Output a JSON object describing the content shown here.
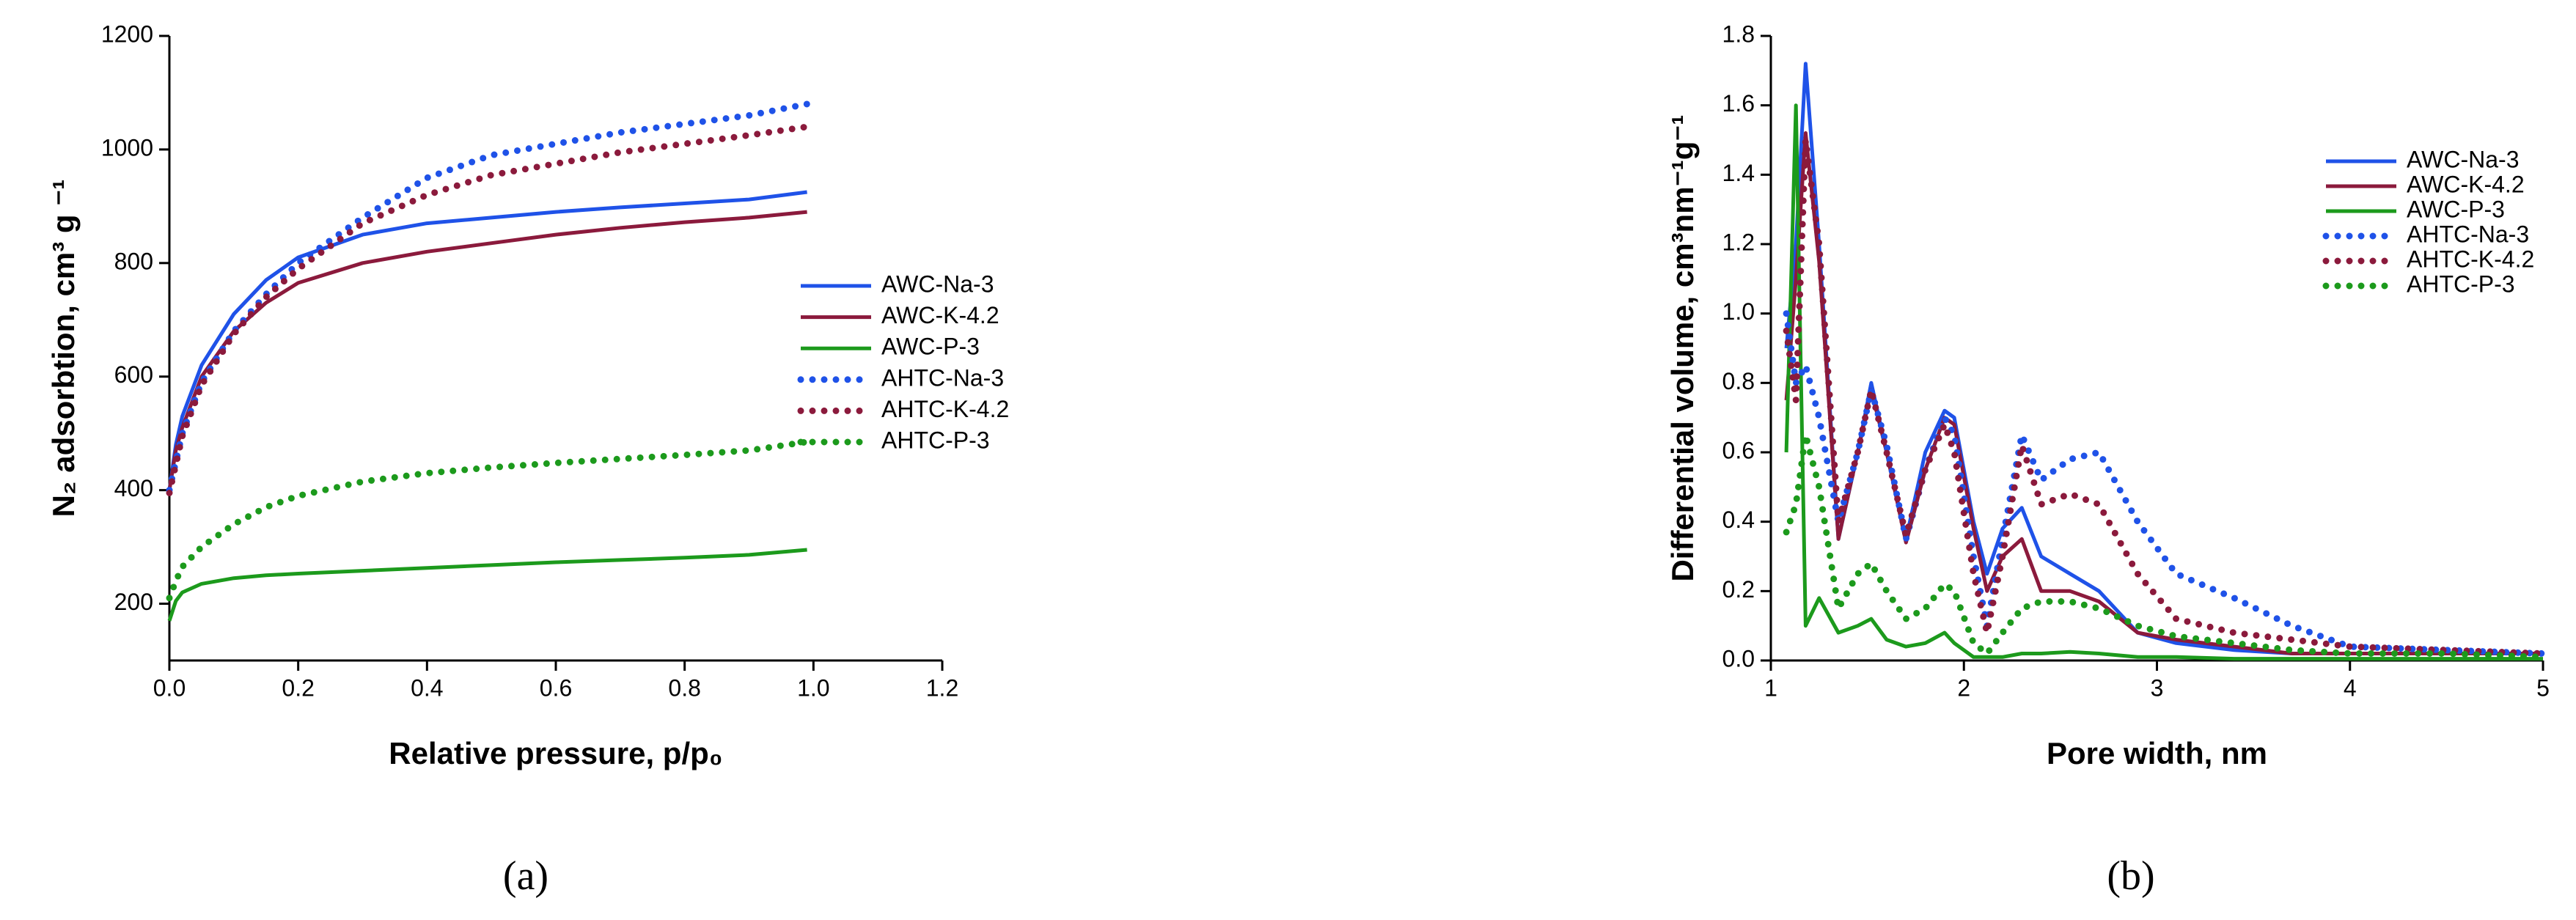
{
  "chart_data": [
    {
      "type": "line",
      "caption": "(a)",
      "x_label": "Relative pressure, p/p₀",
      "y_label": "N₂ adsorbtion, cm³ g ⁻¹",
      "xlim": [
        0,
        1.2
      ],
      "ylim": [
        100,
        1200
      ],
      "xticks": [
        {
          "value": 0,
          "label": "0.0"
        },
        0.2,
        0.4,
        0.6,
        0.8,
        {
          "value": 1,
          "label": "1.0"
        },
        1.2
      ],
      "yticks": [
        200,
        400,
        600,
        800,
        1000,
        1200
      ],
      "x": [
        0,
        0.01,
        0.02,
        0.05,
        0.1,
        0.15,
        0.2,
        0.3,
        0.4,
        0.5,
        0.6,
        0.7,
        0.8,
        0.9,
        0.99
      ],
      "series": [
        {
          "name": "AWC-Na-3",
          "color": "#1f52e8",
          "line_style": "solid",
          "values": [
            400,
            480,
            530,
            620,
            710,
            770,
            810,
            850,
            870,
            880,
            890,
            898,
            905,
            912,
            925
          ]
        },
        {
          "name": "AWC-K-4.2",
          "color": "#8b1a3c",
          "line_style": "solid",
          "values": [
            400,
            470,
            510,
            600,
            680,
            730,
            765,
            800,
            820,
            835,
            850,
            862,
            872,
            880,
            890
          ]
        },
        {
          "name": "AWC-P-3",
          "color": "#1c9a1c",
          "line_style": "solid",
          "values": [
            170,
            205,
            220,
            235,
            245,
            250,
            253,
            258,
            263,
            268,
            273,
            277,
            281,
            286,
            295
          ]
        },
        {
          "name": "AHTC-Na-3",
          "color": "#1f52e8",
          "line_style": "dotted",
          "values": [
            400,
            450,
            500,
            590,
            680,
            745,
            800,
            880,
            950,
            990,
            1010,
            1030,
            1045,
            1060,
            1080
          ]
        },
        {
          "name": "AHTC-K-4.2",
          "color": "#8b1a3c",
          "line_style": "dotted",
          "values": [
            395,
            445,
            495,
            585,
            675,
            740,
            790,
            870,
            920,
            955,
            975,
            995,
            1010,
            1025,
            1040
          ]
        },
        {
          "name": "AHTC-P-3",
          "color": "#1c9a1c",
          "line_style": "dotted",
          "values": [
            210,
            240,
            265,
            300,
            340,
            370,
            390,
            415,
            430,
            440,
            448,
            455,
            462,
            470,
            485
          ]
        }
      ]
    },
    {
      "type": "line",
      "caption": "(b)",
      "x_label": "Pore width, nm",
      "y_label": "Differential volume, cm³nm⁻¹g⁻¹",
      "xlim": [
        1,
        5
      ],
      "ylim": [
        0,
        1.8
      ],
      "xticks": [
        1,
        2,
        3,
        4,
        5
      ],
      "yticks": [
        {
          "value": 0,
          "label": "0.0"
        },
        0.2,
        0.4,
        0.6,
        0.8,
        {
          "value": 1,
          "label": "1.0"
        },
        1.2,
        1.4,
        1.6,
        1.8
      ],
      "x": [
        1.08,
        1.13,
        1.18,
        1.25,
        1.35,
        1.45,
        1.52,
        1.6,
        1.7,
        1.8,
        1.9,
        1.95,
        2.05,
        2.12,
        2.2,
        2.3,
        2.4,
        2.55,
        2.7,
        2.9,
        3.1,
        3.4,
        3.7,
        4.0,
        4.5,
        5.0
      ],
      "series": [
        {
          "name": "AWC-Na-3",
          "color": "#1f52e8",
          "line_style": "solid",
          "values": [
            0.9,
            1.2,
            1.72,
            1.2,
            0.35,
            0.6,
            0.8,
            0.6,
            0.35,
            0.6,
            0.72,
            0.7,
            0.4,
            0.25,
            0.38,
            0.44,
            0.3,
            0.25,
            0.2,
            0.08,
            0.05,
            0.03,
            0.02,
            0.02,
            0.02,
            0.02
          ]
        },
        {
          "name": "AWC-K-4.2",
          "color": "#8b1a3c",
          "line_style": "solid",
          "values": [
            0.75,
            1.1,
            1.52,
            1.15,
            0.35,
            0.6,
            0.78,
            0.6,
            0.34,
            0.55,
            0.7,
            0.68,
            0.38,
            0.2,
            0.3,
            0.35,
            0.2,
            0.2,
            0.17,
            0.08,
            0.06,
            0.04,
            0.02,
            0.02,
            0.02,
            0.02
          ]
        },
        {
          "name": "AWC-P-3",
          "color": "#1c9a1c",
          "line_style": "solid",
          "values": [
            0.6,
            1.6,
            0.1,
            0.18,
            0.08,
            0.1,
            0.12,
            0.06,
            0.04,
            0.05,
            0.08,
            0.05,
            0.01,
            0.01,
            0.01,
            0.02,
            0.02,
            0.025,
            0.02,
            0.01,
            0.01,
            0.005,
            0.005,
            0.005,
            0.005,
            0.005
          ]
        },
        {
          "name": "AHTC-Na-3",
          "color": "#1f52e8",
          "line_style": "dotted",
          "values": [
            1.0,
            0.8,
            0.85,
            0.7,
            0.4,
            0.6,
            0.78,
            0.62,
            0.35,
            0.55,
            0.7,
            0.65,
            0.3,
            0.1,
            0.35,
            0.65,
            0.52,
            0.58,
            0.6,
            0.4,
            0.25,
            0.18,
            0.1,
            0.04,
            0.03,
            0.02
          ]
        },
        {
          "name": "AHTC-K-4.2",
          "color": "#8b1a3c",
          "line_style": "dotted",
          "values": [
            0.95,
            0.75,
            1.5,
            1.2,
            0.4,
            0.6,
            0.78,
            0.6,
            0.36,
            0.55,
            0.68,
            0.6,
            0.25,
            0.08,
            0.3,
            0.62,
            0.45,
            0.48,
            0.45,
            0.25,
            0.12,
            0.08,
            0.06,
            0.04,
            0.03,
            0.02
          ]
        },
        {
          "name": "AHTC-P-3",
          "color": "#1c9a1c",
          "line_style": "dotted",
          "values": [
            0.37,
            0.45,
            0.65,
            0.5,
            0.15,
            0.25,
            0.28,
            0.2,
            0.12,
            0.15,
            0.22,
            0.2,
            0.05,
            0.02,
            0.08,
            0.15,
            0.17,
            0.17,
            0.15,
            0.1,
            0.07,
            0.05,
            0.03,
            0.02,
            0.02,
            0.01
          ]
        }
      ]
    }
  ]
}
